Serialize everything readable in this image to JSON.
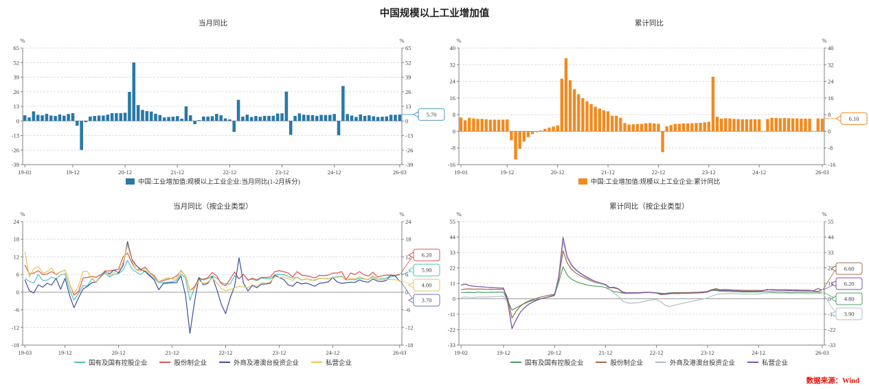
{
  "page": {
    "title": "中国规模以上工业增加值",
    "source": "数据来源：Wind",
    "unit": "%"
  },
  "colors": {
    "axis": "#808080",
    "grid": "#DCDCDC",
    "text": "#404040",
    "source_red": "#E3120B"
  },
  "chart_data": [
    {
      "type": "bar",
      "title": "当月同比",
      "unit": "%",
      "x_start": "19-01",
      "x_ticks": [
        "19-01",
        "19-12",
        "20-12",
        "21-12",
        "22-12",
        "23-12",
        "24-12",
        "26-03"
      ],
      "ylim": [
        -39,
        65
      ],
      "ystep": 13,
      "grid": true,
      "legend_position": "bottom",
      "series": [
        {
          "name": "中国:工业增加值:规模以上工业企业:当月同比(1-2月拆分)",
          "color": "#2878A8",
          "label_color": "#4A96C8",
          "end_label": "5.70",
          "values": [
            5.0,
            3.1,
            8.5,
            5.4,
            5.0,
            6.3,
            4.8,
            4.4,
            5.8,
            4.7,
            6.2,
            6.9,
            -4.3,
            -25.9,
            -1.1,
            3.9,
            4.4,
            4.8,
            4.8,
            5.6,
            6.9,
            6.9,
            7.0,
            7.3,
            25.9,
            52.1,
            14.1,
            9.8,
            8.8,
            8.3,
            6.4,
            5.3,
            3.1,
            3.5,
            3.8,
            4.3,
            2.0,
            12.9,
            5.0,
            -2.9,
            0.7,
            3.9,
            3.8,
            4.2,
            6.3,
            5.0,
            2.2,
            1.3,
            -9.8,
            18.8,
            3.9,
            5.6,
            3.5,
            4.4,
            3.7,
            4.5,
            4.5,
            4.6,
            6.6,
            6.8,
            26.1,
            -12.4,
            4.5,
            6.7,
            5.6,
            5.3,
            5.1,
            4.5,
            5.4,
            5.3,
            5.4,
            6.2,
            -12.8,
            31.1,
            6.1,
            4.8,
            3.5,
            5.8,
            4.5,
            5.0,
            4.2,
            3.5,
            3.7,
            4.0,
            5.5,
            5.5,
            5.7
          ]
        }
      ]
    },
    {
      "type": "bar",
      "title": "累计同比",
      "unit": "%",
      "x_start": "19-01",
      "x_ticks": [
        "19-01",
        "19-12",
        "20-12",
        "21-12",
        "22-12",
        "23-12",
        "24-12",
        "26-03"
      ],
      "ylim": [
        -16,
        40
      ],
      "ystep": 8,
      "grid": true,
      "legend_position": "bottom",
      "series": [
        {
          "name": "中国:工业增加值:规模以上工业企业:累计同比",
          "color": "#F28A1E",
          "label_color": "#F28A1E",
          "end_label": "6.10",
          "values": [
            6.6,
            5.3,
            6.5,
            6.2,
            6.0,
            6.0,
            5.8,
            5.6,
            5.6,
            5.6,
            5.6,
            5.7,
            -4.3,
            -13.5,
            -8.4,
            -4.9,
            -2.8,
            -1.3,
            -0.4,
            0.4,
            1.2,
            1.8,
            2.3,
            2.8,
            25.3,
            35.1,
            24.5,
            20.3,
            17.8,
            15.9,
            14.4,
            13.1,
            11.8,
            10.9,
            10.1,
            9.6,
            7.5,
            7.5,
            6.5,
            4.0,
            3.3,
            3.4,
            3.5,
            3.6,
            3.9,
            4.0,
            3.8,
            3.6,
            -10.0,
            2.4,
            3.0,
            3.6,
            3.6,
            3.8,
            3.8,
            3.9,
            4.0,
            4.1,
            4.3,
            4.6,
            26.2,
            7.0,
            6.1,
            6.3,
            6.2,
            6.0,
            5.9,
            5.8,
            5.8,
            5.8,
            5.8,
            5.8,
            null,
            5.9,
            6.5,
            6.4,
            6.3,
            6.4,
            6.3,
            6.2,
            6.2,
            6.1,
            6.1,
            6.1,
            null,
            6.2,
            6.1
          ]
        }
      ]
    },
    {
      "type": "line",
      "title": "当月同比（按企业类型）",
      "unit": "%",
      "x_start": "19-03",
      "x_ticks": [
        "19-03",
        "19-12",
        "20-12",
        "21-12",
        "22-12",
        "23-12",
        "24-12",
        "26-03"
      ],
      "ylim": [
        -18,
        24
      ],
      "ystep": 6,
      "grid": true,
      "legend_position": "bottom",
      "series": [
        {
          "name": "国有及国有控股企业",
          "color": "#4FC2BC",
          "label_color": "#4FC2BC",
          "end_label": "5.90",
          "values": [
            4.7,
            3.7,
            3.1,
            6.0,
            4.0,
            4.1,
            5.1,
            4.5,
            5.9,
            6.3,
            1.0,
            -2.7,
            -0.5,
            2.2,
            2.1,
            4.5,
            3.4,
            5.2,
            6.5,
            5.2,
            6.1,
            6.3,
            7.5,
            10.8,
            7.9,
            6.8,
            6.0,
            7.3,
            5.8,
            4.6,
            3.2,
            3.3,
            3.4,
            3.5,
            4.0,
            6.2,
            4.9,
            -2.8,
            1.5,
            5.0,
            4.1,
            4.6,
            5.5,
            4.8,
            3.3,
            2.8,
            2.8,
            5.6,
            4.6,
            6.1,
            4.2,
            4.4,
            3.9,
            4.8,
            4.6,
            4.5,
            5.8,
            6.0,
            6.0,
            5.3,
            4.8,
            5.0,
            4.1,
            4.5,
            4.2,
            4.0,
            4.6,
            4.7,
            4.5,
            5.1,
            5.2,
            5.5,
            4.1,
            4.3,
            4.2,
            4.8,
            4.5,
            4.3,
            5.2,
            4.4,
            4.6,
            4.8,
            5.2,
            5.6,
            5.9
          ]
        },
        {
          "name": "股份制企业",
          "color": "#E0524E",
          "label_color": "#E0524E",
          "end_label": "6.20",
          "values": [
            9.3,
            6.2,
            6.5,
            7.3,
            6.0,
            6.2,
            7.0,
            6.0,
            6.9,
            7.5,
            3.0,
            -1.0,
            0.1,
            4.8,
            5.0,
            5.3,
            5.1,
            6.0,
            7.3,
            7.2,
            7.5,
            7.8,
            12.0,
            13.3,
            9.9,
            7.6,
            7.8,
            8.5,
            6.6,
            5.6,
            3.5,
            3.9,
            4.4,
            4.7,
            5.5,
            7.2,
            5.6,
            0.5,
            1.8,
            4.5,
            4.4,
            4.9,
            6.7,
            5.5,
            2.9,
            2.2,
            4.4,
            6.9,
            4.5,
            6.1,
            4.0,
            4.8,
            4.2,
            5.0,
            5.0,
            5.1,
            7.0,
            7.3,
            7.0,
            6.5,
            5.2,
            7.0,
            5.8,
            5.6,
            5.3,
            4.8,
            5.7,
            5.6,
            5.8,
            6.5,
            6.5,
            7.0,
            4.3,
            6.5,
            6.0,
            7.0,
            5.9,
            5.5,
            6.8,
            5.2,
            5.5,
            5.8,
            5.8,
            5.7,
            6.2
          ]
        },
        {
          "name": "外商及港澳台投资企业",
          "color": "#3E4E96",
          "label_color": "#6B74B8",
          "end_label": "3.70",
          "values": [
            4.2,
            0.5,
            -0.3,
            2.5,
            1.7,
            3.0,
            2.4,
            4.7,
            1.0,
            4.7,
            -1.0,
            -5.3,
            -2.0,
            1.0,
            2.0,
            3.2,
            3.5,
            5.6,
            7.0,
            6.3,
            7.6,
            6.5,
            9.0,
            17.2,
            11.1,
            9.0,
            7.7,
            7.0,
            5.5,
            4.1,
            0.8,
            2.9,
            3.1,
            3.2,
            3.2,
            5.5,
            -1.0,
            -14.0,
            -3.5,
            4.9,
            2.5,
            3.0,
            5.3,
            1.0,
            -4.0,
            -7.3,
            -2.0,
            2.0,
            11.7,
            3.0,
            0.4,
            2.3,
            1.5,
            2.7,
            2.8,
            3.0,
            5.8,
            5.0,
            4.3,
            2.5,
            2.0,
            3.5,
            2.8,
            3.1,
            2.6,
            2.0,
            3.0,
            3.2,
            3.5,
            5.0,
            3.5,
            3.0,
            3.2,
            3.4,
            3.3,
            4.2,
            3.6,
            3.4,
            4.5,
            3.8,
            3.6,
            4.0,
            5.8,
            5.5,
            3.7
          ]
        },
        {
          "name": "私营企业",
          "color": "#E8C55A",
          "label_color": "#E8C55A",
          "end_label": "4.00",
          "values": [
            13.8,
            5.2,
            8.0,
            8.7,
            6.5,
            7.0,
            8.2,
            5.8,
            6.9,
            7.5,
            3.0,
            -0.5,
            2.0,
            7.0,
            7.1,
            4.8,
            3.3,
            5.7,
            7.5,
            5.6,
            6.8,
            7.0,
            10.0,
            16.0,
            10.6,
            7.6,
            7.1,
            8.1,
            6.4,
            5.1,
            3.5,
            4.4,
            4.9,
            4.5,
            4.5,
            7.5,
            5.4,
            0.6,
            1.1,
            4.0,
            3.0,
            3.4,
            4.9,
            3.2,
            1.3,
            0.5,
            0.9,
            1.5,
            2.0,
            1.8,
            1.5,
            2.5,
            2.0,
            3.2,
            3.0,
            3.5,
            5.2,
            5.0,
            5.0,
            4.5,
            4.0,
            5.2,
            4.2,
            4.6,
            4.0,
            4.2,
            4.7,
            4.8,
            4.6,
            5.0,
            5.0,
            5.3,
            4.0,
            4.8,
            4.5,
            5.2,
            4.6,
            4.4,
            5.5,
            4.6,
            4.2,
            4.3,
            4.3,
            4.2,
            4.0
          ]
        }
      ]
    },
    {
      "type": "line",
      "title": "累计同比（按企业类型）",
      "unit": "%",
      "x_start": "19-02",
      "x_ticks": [
        "19-02",
        "19-12",
        "20-12",
        "21-12",
        "22-12",
        "23-12",
        "24-12",
        "26-03"
      ],
      "ylim": [
        -33,
        55
      ],
      "ystep": 11,
      "grid": true,
      "legend_position": "bottom",
      "series": [
        {
          "name": "国有及国有控股企业",
          "color": "#4E9D62",
          "label_color": "#4E9D62",
          "end_label": "4.80",
          "values": [
            4.5,
            4.5,
            4.6,
            4.4,
            4.8,
            4.6,
            4.5,
            4.7,
            4.6,
            4.7,
            4.7,
            -1.5,
            -7.9,
            -6.5,
            -4.7,
            -3.3,
            -2.0,
            -1.2,
            -0.5,
            0.2,
            0.8,
            1.4,
            2.2,
            12.0,
            22.8,
            16.9,
            14.0,
            12.4,
            11.3,
            10.4,
            9.6,
            9.2,
            8.9,
            8.7,
            8.0,
            6.5,
            5.0,
            4.8,
            4.0,
            3.9,
            4.0,
            4.1,
            4.2,
            4.4,
            4.5,
            4.4,
            4.3,
            4.0,
            3.8,
            4.2,
            4.4,
            4.4,
            4.4,
            4.3,
            4.4,
            4.5,
            4.5,
            4.7,
            5.0,
            6.0,
            5.8,
            5.5,
            5.4,
            5.3,
            5.1,
            5.0,
            4.9,
            4.9,
            4.8,
            4.8,
            4.9,
            5.0,
            5.0,
            4.9,
            4.8,
            4.8,
            4.8,
            4.7,
            4.7,
            4.7,
            4.7,
            4.7,
            4.7,
            4.7,
            4.7,
            4.8
          ]
        },
        {
          "name": "股份制企业",
          "color": "#9C6B48",
          "label_color": "#9C6B48",
          "end_label": "6.60",
          "values": [
            6.5,
            6.9,
            7.1,
            6.8,
            7.0,
            6.9,
            6.7,
            6.8,
            6.7,
            6.8,
            6.9,
            0.5,
            -13.8,
            -8.7,
            -5.2,
            -3.0,
            -1.4,
            -0.4,
            0.5,
            1.4,
            2.1,
            2.7,
            3.2,
            14.0,
            34.2,
            25.5,
            21.0,
            18.4,
            16.5,
            14.9,
            13.6,
            12.3,
            11.3,
            10.5,
            9.9,
            7.8,
            7.8,
            6.9,
            4.5,
            3.8,
            3.9,
            4.0,
            4.1,
            4.4,
            4.5,
            4.3,
            4.1,
            3.0,
            3.2,
            3.8,
            4.3,
            4.2,
            4.4,
            4.4,
            4.5,
            4.6,
            4.7,
            4.9,
            5.3,
            6.5,
            7.3,
            6.4,
            6.6,
            6.5,
            6.3,
            6.2,
            6.1,
            6.0,
            6.0,
            6.0,
            6.0,
            6.0,
            6.2,
            6.6,
            6.5,
            6.4,
            6.5,
            6.4,
            6.3,
            6.3,
            6.2,
            6.2,
            6.1,
            5.5,
            5.3,
            6.6
          ]
        },
        {
          "name": "外商及港澳台投资企业",
          "color": "#AFBDC8",
          "label_color": "#AFBDC8",
          "end_label": "3.90",
          "values": [
            0.8,
            1.3,
            1.1,
            1.0,
            1.2,
            1.3,
            1.2,
            1.4,
            1.5,
            1.6,
            1.8,
            -3.0,
            -21.1,
            -14.5,
            -9.3,
            -6.0,
            -3.6,
            -2.1,
            -0.8,
            0.2,
            0.9,
            1.6,
            2.4,
            15.0,
            40.5,
            29.2,
            23.6,
            20.3,
            18.0,
            16.0,
            14.3,
            12.7,
            11.5,
            10.5,
            9.7,
            6.5,
            4.0,
            2.0,
            -1.5,
            -2.8,
            -3.2,
            -3.0,
            -2.6,
            -2.0,
            -1.2,
            -0.8,
            -0.6,
            -2.0,
            -4.5,
            -5.5,
            -4.8,
            -4.0,
            -3.3,
            -2.6,
            -2.0,
            -1.4,
            -0.8,
            -0.2,
            0.5,
            2.0,
            3.0,
            3.5,
            3.6,
            3.7,
            3.6,
            3.5,
            3.4,
            3.4,
            3.3,
            3.3,
            3.4,
            3.8,
            4.0,
            4.2,
            4.1,
            4.0,
            4.0,
            3.9,
            3.9,
            3.8,
            3.8,
            3.7,
            3.7,
            3.7,
            3.8,
            3.9
          ]
        },
        {
          "name": "私营企业",
          "color": "#7B51A8",
          "label_color": "#7B51A8",
          "end_label": "6.20",
          "values": [
            9.8,
            10.5,
            9.4,
            9.0,
            8.7,
            8.5,
            8.2,
            8.0,
            7.8,
            7.7,
            7.7,
            -2.0,
            -21.3,
            -14.8,
            -9.5,
            -6.2,
            -3.8,
            -2.2,
            -0.9,
            0.1,
            0.9,
            1.7,
            2.7,
            16.0,
            43.8,
            30.0,
            24.2,
            20.9,
            18.5,
            16.5,
            14.9,
            13.2,
            12.0,
            11.1,
            10.2,
            8.0,
            8.2,
            7.2,
            5.0,
            4.2,
            4.3,
            4.3,
            4.4,
            4.6,
            4.7,
            4.5,
            4.2,
            3.5,
            3.2,
            3.5,
            3.8,
            3.7,
            3.9,
            3.9,
            4.0,
            4.1,
            4.2,
            4.4,
            4.8,
            6.0,
            6.5,
            5.8,
            6.0,
            5.9,
            5.7,
            5.6,
            5.5,
            5.4,
            5.4,
            5.4,
            5.5,
            5.6,
            6.7,
            6.2,
            6.1,
            6.0,
            6.0,
            5.9,
            5.9,
            5.8,
            5.8,
            5.7,
            5.7,
            5.8,
            7.3,
            6.2
          ]
        }
      ]
    }
  ]
}
